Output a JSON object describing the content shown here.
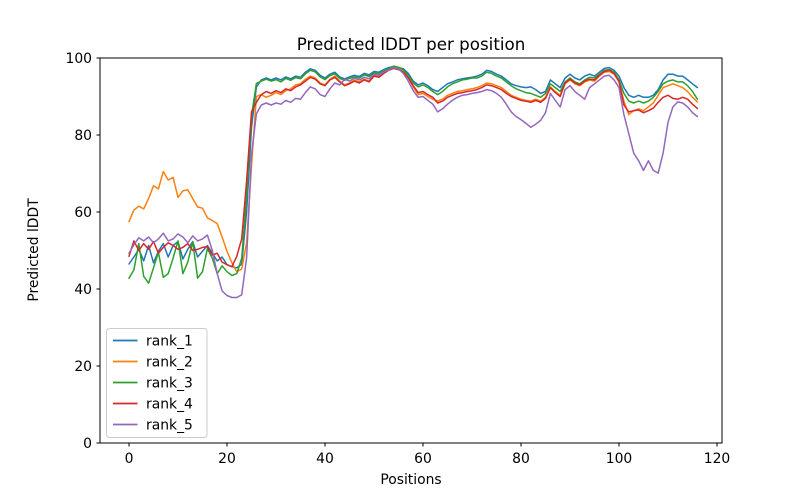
{
  "chart_data": {
    "type": "line",
    "title": "Predicted lDDT per position",
    "xlabel": "Positions",
    "ylabel": "Predicted lDDT",
    "xlim": [
      -5.9,
      121.0
    ],
    "ylim": [
      0,
      100
    ],
    "xticks": [
      0,
      20,
      40,
      60,
      80,
      100,
      120
    ],
    "yticks": [
      0,
      20,
      40,
      60,
      80,
      100
    ],
    "grid": false,
    "legend_position": "lower left",
    "x_start": 0,
    "x_step": 1,
    "n_points": 117,
    "series": [
      {
        "name": "rank_1",
        "color": "#1f77b4",
        "values": [
          46.5,
          48.3,
          50.3,
          47.3,
          51.3,
          46.8,
          49.8,
          51.8,
          48.3,
          51.3,
          52.3,
          47.8,
          50.3,
          52.3,
          48.3,
          49.8,
          51.3,
          49.3,
          47.3,
          48.3,
          46.3,
          45.8,
          45.5,
          46.5,
          60.0,
          82.0,
          92.5,
          94.3,
          94.8,
          94.3,
          94.8,
          94.3,
          95.1,
          94.6,
          95.3,
          95.0,
          96.3,
          97.2,
          96.8,
          95.5,
          94.8,
          95.8,
          96.3,
          95.1,
          94.6,
          95.1,
          95.5,
          95.2,
          96.0,
          95.6,
          96.5,
          96.3,
          97.0,
          97.5,
          97.8,
          97.5,
          97.2,
          96.0,
          94.0,
          93.0,
          93.5,
          92.8,
          91.8,
          91.3,
          92.3,
          93.3,
          93.8,
          94.3,
          94.6,
          94.8,
          95.0,
          95.3,
          95.8,
          96.8,
          96.5,
          95.8,
          95.3,
          94.3,
          93.3,
          92.8,
          92.5,
          92.3,
          92.5,
          91.8,
          90.8,
          91.3,
          94.3,
          93.3,
          92.3,
          94.8,
          95.8,
          94.8,
          94.3,
          95.3,
          95.8,
          95.3,
          96.3,
          97.3,
          97.5,
          96.8,
          95.3,
          92.3,
          90.3,
          89.8,
          90.3,
          89.8,
          89.8,
          90.3,
          91.8,
          94.3,
          95.8,
          95.8,
          95.3,
          95.3,
          94.3,
          93.3,
          92.3
        ]
      },
      {
        "name": "rank_2",
        "color": "#ff7f0e",
        "values": [
          57.5,
          60.5,
          61.5,
          60.8,
          63.5,
          66.8,
          66.0,
          70.5,
          68.3,
          69.0,
          63.8,
          65.5,
          65.8,
          63.5,
          61.3,
          61.0,
          58.5,
          57.8,
          57.0,
          53.5,
          49.8,
          46.8,
          44.5,
          45.2,
          52.0,
          72.0,
          90.0,
          90.5,
          89.8,
          90.3,
          91.0,
          90.5,
          91.5,
          92.0,
          93.0,
          93.3,
          94.5,
          95.3,
          94.8,
          93.5,
          93.0,
          94.5,
          95.3,
          94.0,
          93.0,
          93.5,
          94.3,
          93.8,
          94.5,
          94.0,
          95.5,
          95.3,
          96.3,
          97.0,
          97.5,
          97.3,
          96.5,
          95.0,
          92.5,
          90.5,
          90.8,
          90.0,
          89.3,
          88.8,
          89.3,
          90.3,
          90.8,
          91.3,
          91.5,
          91.8,
          92.0,
          92.3,
          92.8,
          93.5,
          93.3,
          92.8,
          92.3,
          91.3,
          90.3,
          89.8,
          89.3,
          89.0,
          88.8,
          89.3,
          88.8,
          89.8,
          92.5,
          91.3,
          90.3,
          93.3,
          94.3,
          93.3,
          92.8,
          93.8,
          94.3,
          94.0,
          95.3,
          96.3,
          96.5,
          95.8,
          93.8,
          88.8,
          85.3,
          86.3,
          86.8,
          86.3,
          87.3,
          88.3,
          90.3,
          92.3,
          92.8,
          93.3,
          92.8,
          92.3,
          91.3,
          89.8,
          88.6
        ]
      },
      {
        "name": "rank_3",
        "color": "#2ca02c",
        "values": [
          42.8,
          45.0,
          51.8,
          43.3,
          41.5,
          45.5,
          49.5,
          43.0,
          44.0,
          48.0,
          52.5,
          44.0,
          47.0,
          52.3,
          42.8,
          44.5,
          50.5,
          48.0,
          44.0,
          46.0,
          44.5,
          43.5,
          44.0,
          48.0,
          64.0,
          85.0,
          93.4,
          94.0,
          94.5,
          94.0,
          94.4,
          93.8,
          94.7,
          94.2,
          94.9,
          94.6,
          95.9,
          96.8,
          96.4,
          95.1,
          94.4,
          95.4,
          95.9,
          94.7,
          94.2,
          94.7,
          95.1,
          94.8,
          95.6,
          95.2,
          96.1,
          95.9,
          96.7,
          97.2,
          97.9,
          97.6,
          96.9,
          95.5,
          93.5,
          92.5,
          93.0,
          92.3,
          91.3,
          90.5,
          91.3,
          92.5,
          93.3,
          93.8,
          94.3,
          94.5,
          94.8,
          94.8,
          95.3,
          96.3,
          96.0,
          95.3,
          94.8,
          93.8,
          92.8,
          92.0,
          91.5,
          91.0,
          90.8,
          90.3,
          89.8,
          90.8,
          93.3,
          92.3,
          91.3,
          93.8,
          94.8,
          93.8,
          93.3,
          94.3,
          95.0,
          94.8,
          95.8,
          96.8,
          97.0,
          96.3,
          94.3,
          90.8,
          88.8,
          88.3,
          88.8,
          88.3,
          88.8,
          89.8,
          91.3,
          93.3,
          94.0,
          94.3,
          93.8,
          93.8,
          92.8,
          91.3,
          89.3
        ]
      },
      {
        "name": "rank_4",
        "color": "#d62728",
        "values": [
          48.5,
          52.5,
          50.0,
          51.8,
          50.3,
          52.3,
          49.3,
          50.8,
          52.0,
          51.3,
          50.3,
          50.8,
          51.8,
          50.0,
          50.3,
          50.8,
          51.0,
          48.8,
          49.3,
          47.0,
          46.3,
          45.8,
          48.5,
          53.0,
          68.0,
          86.0,
          88.5,
          90.5,
          91.3,
          90.8,
          91.5,
          91.0,
          92.0,
          91.5,
          92.5,
          93.0,
          94.0,
          95.0,
          94.5,
          93.3,
          92.8,
          94.3,
          95.0,
          93.8,
          92.8,
          93.3,
          94.0,
          93.5,
          94.3,
          93.8,
          95.3,
          95.0,
          96.0,
          96.8,
          97.3,
          97.0,
          96.3,
          94.8,
          92.8,
          91.0,
          91.3,
          90.5,
          89.8,
          88.3,
          88.8,
          89.8,
          90.3,
          90.8,
          91.0,
          91.3,
          91.5,
          91.8,
          92.3,
          93.0,
          92.8,
          92.3,
          91.8,
          90.8,
          90.0,
          89.5,
          89.0,
          88.8,
          88.5,
          89.0,
          88.5,
          89.5,
          92.3,
          91.0,
          90.0,
          93.5,
          94.5,
          93.5,
          93.0,
          94.0,
          94.5,
          94.3,
          95.5,
          96.5,
          96.8,
          96.0,
          94.0,
          87.8,
          86.0,
          86.3,
          86.5,
          85.8,
          86.3,
          87.0,
          88.5,
          89.8,
          90.3,
          89.5,
          89.3,
          89.8,
          89.3,
          88.0,
          86.9
        ]
      },
      {
        "name": "rank_5",
        "color": "#9467bd",
        "values": [
          49.3,
          51.5,
          53.3,
          52.5,
          53.5,
          52.0,
          53.0,
          54.5,
          52.5,
          53.0,
          54.3,
          53.5,
          52.0,
          53.8,
          52.5,
          53.0,
          54.0,
          50.0,
          44.0,
          39.5,
          38.3,
          37.8,
          37.8,
          38.5,
          48.0,
          75.0,
          85.5,
          87.8,
          88.3,
          87.8,
          88.3,
          88.0,
          89.0,
          88.5,
          89.5,
          89.3,
          91.0,
          92.5,
          92.0,
          90.5,
          90.0,
          92.0,
          93.5,
          93.0,
          94.5,
          94.0,
          94.8,
          94.3,
          95.0,
          94.6,
          95.8,
          95.5,
          96.4,
          96.9,
          97.5,
          97.2,
          96.0,
          94.0,
          91.5,
          89.8,
          90.0,
          89.0,
          88.0,
          86.0,
          86.8,
          88.0,
          89.0,
          89.8,
          90.3,
          90.5,
          90.8,
          91.0,
          91.3,
          91.8,
          91.5,
          90.8,
          89.8,
          88.0,
          86.0,
          84.8,
          84.0,
          83.0,
          82.0,
          82.8,
          83.8,
          85.8,
          90.8,
          89.0,
          87.3,
          91.8,
          92.8,
          91.3,
          90.3,
          89.3,
          92.3,
          93.3,
          94.3,
          95.3,
          95.5,
          94.3,
          92.3,
          85.3,
          80.3,
          75.3,
          73.3,
          70.8,
          73.3,
          70.8,
          70.1,
          75.3,
          83.3,
          87.3,
          88.6,
          88.3,
          87.3,
          85.8,
          84.8
        ]
      }
    ]
  }
}
